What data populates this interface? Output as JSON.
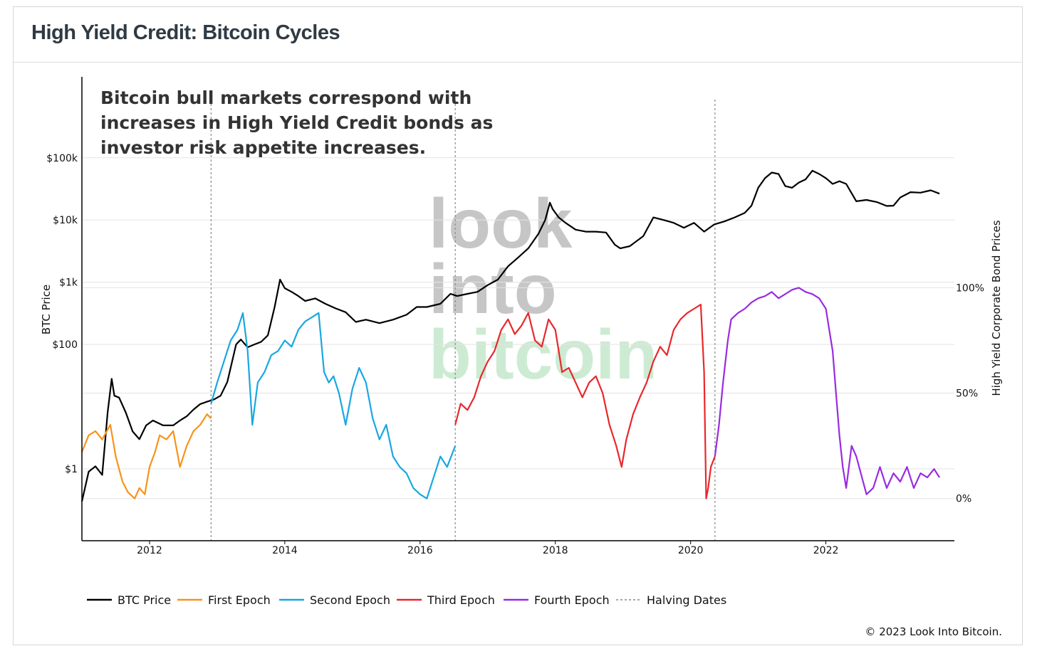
{
  "header": {
    "title": "High Yield Credit: Bitcoin Cycles"
  },
  "footer": {
    "copyright": "© 2023 Look Into Bitcoin."
  },
  "watermark": {
    "lines": [
      "look",
      "into",
      "bitcoin"
    ],
    "colors": [
      "#c6c6c6",
      "#c6c6c6",
      "#cdebd3"
    ]
  },
  "chart_data": {
    "type": "line",
    "annotation": [
      "Bitcoin bull markets correspond with",
      "increases in High Yield Credit bonds as",
      "investor risk appetite increases."
    ],
    "xlim": [
      2011.0,
      2023.9
    ],
    "x_ticks": [
      2012,
      2014,
      2016,
      2018,
      2020,
      2022
    ],
    "x_tick_labels": [
      "2012",
      "2014",
      "2016",
      "2018",
      "2020",
      "2022"
    ],
    "left_axis": {
      "label": "BTC Price",
      "scale": "log",
      "ylim": [
        0.07,
        2000000
      ],
      "ticks": [
        1,
        100,
        1000,
        10000,
        100000
      ],
      "tick_labels": [
        "$1",
        "$100",
        "$1k",
        "$10k",
        "$100k"
      ]
    },
    "right_axis": {
      "label": "High Yield Corporate Bond Prices",
      "scale": "linear",
      "ylim": [
        -20,
        200
      ],
      "ticks": [
        0,
        50,
        100
      ],
      "tick_labels": [
        "0%",
        "50%",
        "100%"
      ]
    },
    "grid": true,
    "legend_position": "bottom-left",
    "halving_dates": [
      2012.91,
      2016.52,
      2020.36
    ],
    "series": [
      {
        "name": "BTC Price",
        "axis": "left",
        "color": "#000000",
        "x": [
          2011.0,
          2011.1,
          2011.2,
          2011.3,
          2011.38,
          2011.44,
          2011.48,
          2011.55,
          2011.65,
          2011.75,
          2011.85,
          2011.95,
          2012.05,
          2012.2,
          2012.35,
          2012.45,
          2012.55,
          2012.65,
          2012.75,
          2012.85,
          2012.95,
          2013.05,
          2013.15,
          2013.28,
          2013.35,
          2013.45,
          2013.55,
          2013.65,
          2013.75,
          2013.85,
          2013.93,
          2014.0,
          2014.1,
          2014.2,
          2014.3,
          2014.45,
          2014.6,
          2014.75,
          2014.9,
          2015.05,
          2015.2,
          2015.4,
          2015.6,
          2015.8,
          2015.95,
          2016.1,
          2016.3,
          2016.45,
          2016.55,
          2016.7,
          2016.85,
          2017.0,
          2017.15,
          2017.3,
          2017.45,
          2017.6,
          2017.75,
          2017.85,
          2017.92,
          2017.96,
          2018.05,
          2018.15,
          2018.3,
          2018.45,
          2018.6,
          2018.75,
          2018.88,
          2018.96,
          2019.1,
          2019.3,
          2019.45,
          2019.6,
          2019.75,
          2019.9,
          2020.05,
          2020.2,
          2020.35,
          2020.5,
          2020.65,
          2020.8,
          2020.9,
          2021.0,
          2021.1,
          2021.2,
          2021.3,
          2021.4,
          2021.5,
          2021.6,
          2021.7,
          2021.8,
          2021.9,
          2022.0,
          2022.1,
          2022.2,
          2022.3,
          2022.45,
          2022.6,
          2022.75,
          2022.9,
          2023.0,
          2023.1,
          2023.25,
          2023.4,
          2023.55,
          2023.68
        ],
        "y": [
          0.3,
          0.9,
          1.1,
          0.8,
          8,
          28,
          15,
          14,
          8,
          4,
          3,
          5,
          6,
          5,
          5,
          6,
          7,
          9,
          11,
          12,
          13,
          15,
          25,
          100,
          120,
          90,
          100,
          110,
          140,
          400,
          1100,
          800,
          700,
          600,
          500,
          550,
          450,
          380,
          330,
          230,
          250,
          220,
          250,
          300,
          400,
          400,
          450,
          650,
          600,
          650,
          700,
          900,
          1100,
          1800,
          2500,
          3500,
          6000,
          10000,
          19000,
          15000,
          11000,
          9000,
          7000,
          6500,
          6500,
          6300,
          4000,
          3500,
          3800,
          5500,
          11000,
          10000,
          9000,
          7500,
          9000,
          6500,
          8500,
          9500,
          11000,
          13000,
          17000,
          33000,
          47000,
          58000,
          55000,
          35000,
          33000,
          40000,
          45000,
          62000,
          55000,
          47000,
          38000,
          42000,
          38000,
          20000,
          21000,
          19500,
          16800,
          17000,
          23000,
          28000,
          27500,
          30000,
          26500
        ]
      },
      {
        "name": "First Epoch",
        "axis": "right",
        "color": "#f7931a",
        "x": [
          2011.0,
          2011.1,
          2011.2,
          2011.3,
          2011.42,
          2011.5,
          2011.6,
          2011.68,
          2011.78,
          2011.85,
          2011.93,
          2012.0,
          2012.08,
          2012.15,
          2012.25,
          2012.35,
          2012.45,
          2012.55,
          2012.65,
          2012.75,
          2012.85,
          2012.91
        ],
        "y": [
          22,
          30,
          32,
          28,
          35,
          20,
          8,
          3,
          0,
          5,
          2,
          15,
          22,
          30,
          28,
          32,
          15,
          25,
          32,
          35,
          40,
          38
        ]
      },
      {
        "name": "Second Epoch",
        "axis": "right",
        "color": "#19a7e0",
        "x": [
          2012.91,
          2013.0,
          2013.1,
          2013.2,
          2013.3,
          2013.38,
          2013.45,
          2013.52,
          2013.6,
          2013.7,
          2013.8,
          2013.9,
          2014.0,
          2014.1,
          2014.2,
          2014.3,
          2014.4,
          2014.5,
          2014.58,
          2014.65,
          2014.72,
          2014.8,
          2014.9,
          2015.0,
          2015.1,
          2015.2,
          2015.3,
          2015.4,
          2015.5,
          2015.6,
          2015.7,
          2015.8,
          2015.9,
          2016.0,
          2016.1,
          2016.2,
          2016.3,
          2016.4,
          2016.52
        ],
        "y": [
          45,
          55,
          65,
          75,
          80,
          88,
          70,
          35,
          55,
          60,
          68,
          70,
          75,
          72,
          80,
          84,
          86,
          88,
          60,
          55,
          58,
          50,
          35,
          52,
          62,
          55,
          38,
          28,
          35,
          20,
          15,
          12,
          5,
          2,
          0,
          10,
          20,
          15,
          25
        ]
      },
      {
        "name": "Third Epoch",
        "axis": "right",
        "color": "#e8282b",
        "x": [
          2016.52,
          2016.6,
          2016.7,
          2016.8,
          2016.9,
          2017.0,
          2017.1,
          2017.2,
          2017.3,
          2017.4,
          2017.5,
          2017.6,
          2017.7,
          2017.8,
          2017.9,
          2018.0,
          2018.1,
          2018.2,
          2018.3,
          2018.4,
          2018.5,
          2018.6,
          2018.7,
          2018.8,
          2018.9,
          2018.98,
          2019.05,
          2019.15,
          2019.25,
          2019.35,
          2019.45,
          2019.55,
          2019.65,
          2019.75,
          2019.85,
          2019.95,
          2020.05,
          2020.15,
          2020.2,
          2020.23,
          2020.26,
          2020.3,
          2020.36
        ],
        "y": [
          35,
          45,
          42,
          48,
          58,
          65,
          70,
          80,
          85,
          78,
          82,
          88,
          75,
          72,
          85,
          80,
          60,
          62,
          55,
          48,
          55,
          58,
          50,
          35,
          25,
          15,
          28,
          40,
          48,
          55,
          65,
          72,
          68,
          80,
          85,
          88,
          90,
          92,
          60,
          0,
          5,
          15,
          20
        ]
      },
      {
        "name": "Fourth Epoch",
        "axis": "right",
        "color": "#9a2be0",
        "x": [
          2020.36,
          2020.42,
          2020.48,
          2020.55,
          2020.6,
          2020.7,
          2020.8,
          2020.9,
          2021.0,
          2021.1,
          2021.2,
          2021.3,
          2021.4,
          2021.5,
          2021.6,
          2021.7,
          2021.8,
          2021.9,
          2022.0,
          2022.05,
          2022.1,
          2022.15,
          2022.2,
          2022.25,
          2022.3,
          2022.38,
          2022.45,
          2022.55,
          2022.6,
          2022.7,
          2022.8,
          2022.9,
          2023.0,
          2023.1,
          2023.2,
          2023.3,
          2023.4,
          2023.5,
          2023.6,
          2023.68
        ],
        "y": [
          20,
          35,
          55,
          75,
          85,
          88,
          90,
          93,
          95,
          96,
          98,
          95,
          97,
          99,
          100,
          98,
          97,
          95,
          90,
          80,
          70,
          50,
          30,
          15,
          5,
          25,
          20,
          8,
          2,
          5,
          15,
          5,
          12,
          8,
          15,
          5,
          12,
          10,
          14,
          10
        ]
      }
    ]
  }
}
